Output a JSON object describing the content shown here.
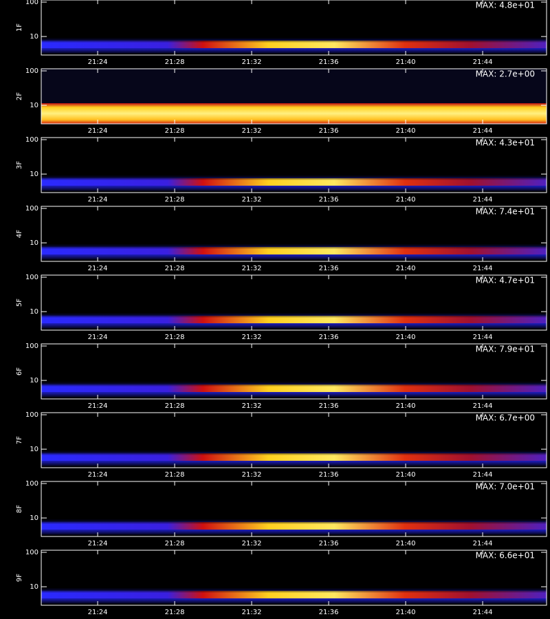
{
  "chart_data": [
    {
      "type": "heatmap",
      "ylabel": "1F",
      "annotation": "MAX: 4.8e+01",
      "log_y": true,
      "ylim": [
        2.9,
        115
      ],
      "yticks": [
        10,
        100
      ],
      "xlim": [
        1281.07,
        1307.32
      ],
      "xticks": [
        {
          "value": 1284,
          "label": "21:24"
        },
        {
          "value": 1288,
          "label": "21:28"
        },
        {
          "value": 1292,
          "label": "21:32"
        },
        {
          "value": 1296,
          "label": "21:36"
        },
        {
          "value": 1300,
          "label": "21:40"
        },
        {
          "value": 1304,
          "label": "21:44"
        }
      ]
    },
    {
      "type": "heatmap",
      "ylabel": "2F",
      "annotation": "MAX: 2.7e+00",
      "log_y": true,
      "ylim": [
        2.9,
        115
      ],
      "yticks": [
        10,
        100
      ],
      "xlim": [
        1281.07,
        1307.32
      ],
      "xticks": [
        {
          "value": 1284,
          "label": "21:24"
        },
        {
          "value": 1288,
          "label": "21:28"
        },
        {
          "value": 1292,
          "label": "21:32"
        },
        {
          "value": 1296,
          "label": "21:36"
        },
        {
          "value": 1300,
          "label": "21:40"
        },
        {
          "value": 1304,
          "label": "21:44"
        }
      ]
    },
    {
      "type": "heatmap",
      "ylabel": "3F",
      "annotation": "MAX: 4.3e+01",
      "log_y": true,
      "ylim": [
        2.9,
        115
      ],
      "yticks": [
        10,
        100
      ],
      "xlim": [
        1281.07,
        1307.32
      ],
      "xticks": [
        {
          "value": 1284,
          "label": "21:24"
        },
        {
          "value": 1288,
          "label": "21:28"
        },
        {
          "value": 1292,
          "label": "21:32"
        },
        {
          "value": 1296,
          "label": "21:36"
        },
        {
          "value": 1300,
          "label": "21:40"
        },
        {
          "value": 1304,
          "label": "21:44"
        }
      ]
    },
    {
      "type": "heatmap",
      "ylabel": "4F",
      "annotation": "MAX: 7.4e+01",
      "log_y": true,
      "ylim": [
        2.9,
        115
      ],
      "yticks": [
        10,
        100
      ],
      "xlim": [
        1281.07,
        1307.32
      ],
      "xticks": [
        {
          "value": 1284,
          "label": "21:24"
        },
        {
          "value": 1288,
          "label": "21:28"
        },
        {
          "value": 1292,
          "label": "21:32"
        },
        {
          "value": 1296,
          "label": "21:36"
        },
        {
          "value": 1300,
          "label": "21:40"
        },
        {
          "value": 1304,
          "label": "21:44"
        }
      ]
    },
    {
      "type": "heatmap",
      "ylabel": "5F",
      "annotation": "MAX: 4.7e+01",
      "log_y": true,
      "ylim": [
        2.9,
        115
      ],
      "yticks": [
        10,
        100
      ],
      "xlim": [
        1281.07,
        1307.32
      ],
      "xticks": [
        {
          "value": 1284,
          "label": "21:24"
        },
        {
          "value": 1288,
          "label": "21:28"
        },
        {
          "value": 1292,
          "label": "21:32"
        },
        {
          "value": 1296,
          "label": "21:36"
        },
        {
          "value": 1300,
          "label": "21:40"
        },
        {
          "value": 1304,
          "label": "21:44"
        }
      ]
    },
    {
      "type": "heatmap",
      "ylabel": "6F",
      "annotation": "MAX: 7.9e+01",
      "log_y": true,
      "ylim": [
        2.9,
        115
      ],
      "yticks": [
        10,
        100
      ],
      "xlim": [
        1281.07,
        1307.32
      ],
      "xticks": [
        {
          "value": 1284,
          "label": "21:24"
        },
        {
          "value": 1288,
          "label": "21:28"
        },
        {
          "value": 1292,
          "label": "21:32"
        },
        {
          "value": 1296,
          "label": "21:36"
        },
        {
          "value": 1300,
          "label": "21:40"
        },
        {
          "value": 1304,
          "label": "21:44"
        }
      ]
    },
    {
      "type": "heatmap",
      "ylabel": "7F",
      "annotation": "MAX: 6.7e+00",
      "log_y": true,
      "ylim": [
        2.9,
        115
      ],
      "yticks": [
        10,
        100
      ],
      "xlim": [
        1281.07,
        1307.32
      ],
      "xticks": [
        {
          "value": 1284,
          "label": "21:24"
        },
        {
          "value": 1288,
          "label": "21:28"
        },
        {
          "value": 1292,
          "label": "21:32"
        },
        {
          "value": 1296,
          "label": "21:36"
        },
        {
          "value": 1300,
          "label": "21:40"
        },
        {
          "value": 1304,
          "label": "21:44"
        }
      ]
    },
    {
      "type": "heatmap",
      "ylabel": "8F",
      "annotation": "MAX: 7.0e+01",
      "log_y": true,
      "ylim": [
        2.9,
        115
      ],
      "yticks": [
        10,
        100
      ],
      "xlim": [
        1281.07,
        1307.32
      ],
      "xticks": [
        {
          "value": 1284,
          "label": "21:24"
        },
        {
          "value": 1288,
          "label": "21:28"
        },
        {
          "value": 1292,
          "label": "21:32"
        },
        {
          "value": 1296,
          "label": "21:36"
        },
        {
          "value": 1300,
          "label": "21:40"
        },
        {
          "value": 1304,
          "label": "21:44"
        }
      ]
    },
    {
      "type": "heatmap",
      "ylabel": "9F",
      "annotation": "MAX: 6.6e+01",
      "log_y": true,
      "ylim": [
        2.9,
        115
      ],
      "yticks": [
        10,
        100
      ],
      "xlim": [
        1281.07,
        1307.32
      ],
      "xticks": [
        {
          "value": 1284,
          "label": "21:24"
        },
        {
          "value": 1288,
          "label": "21:28"
        },
        {
          "value": 1292,
          "label": "21:32"
        },
        {
          "value": 1296,
          "label": "21:36"
        },
        {
          "value": 1300,
          "label": "21:40"
        },
        {
          "value": 1304,
          "label": "21:44"
        }
      ]
    }
  ]
}
